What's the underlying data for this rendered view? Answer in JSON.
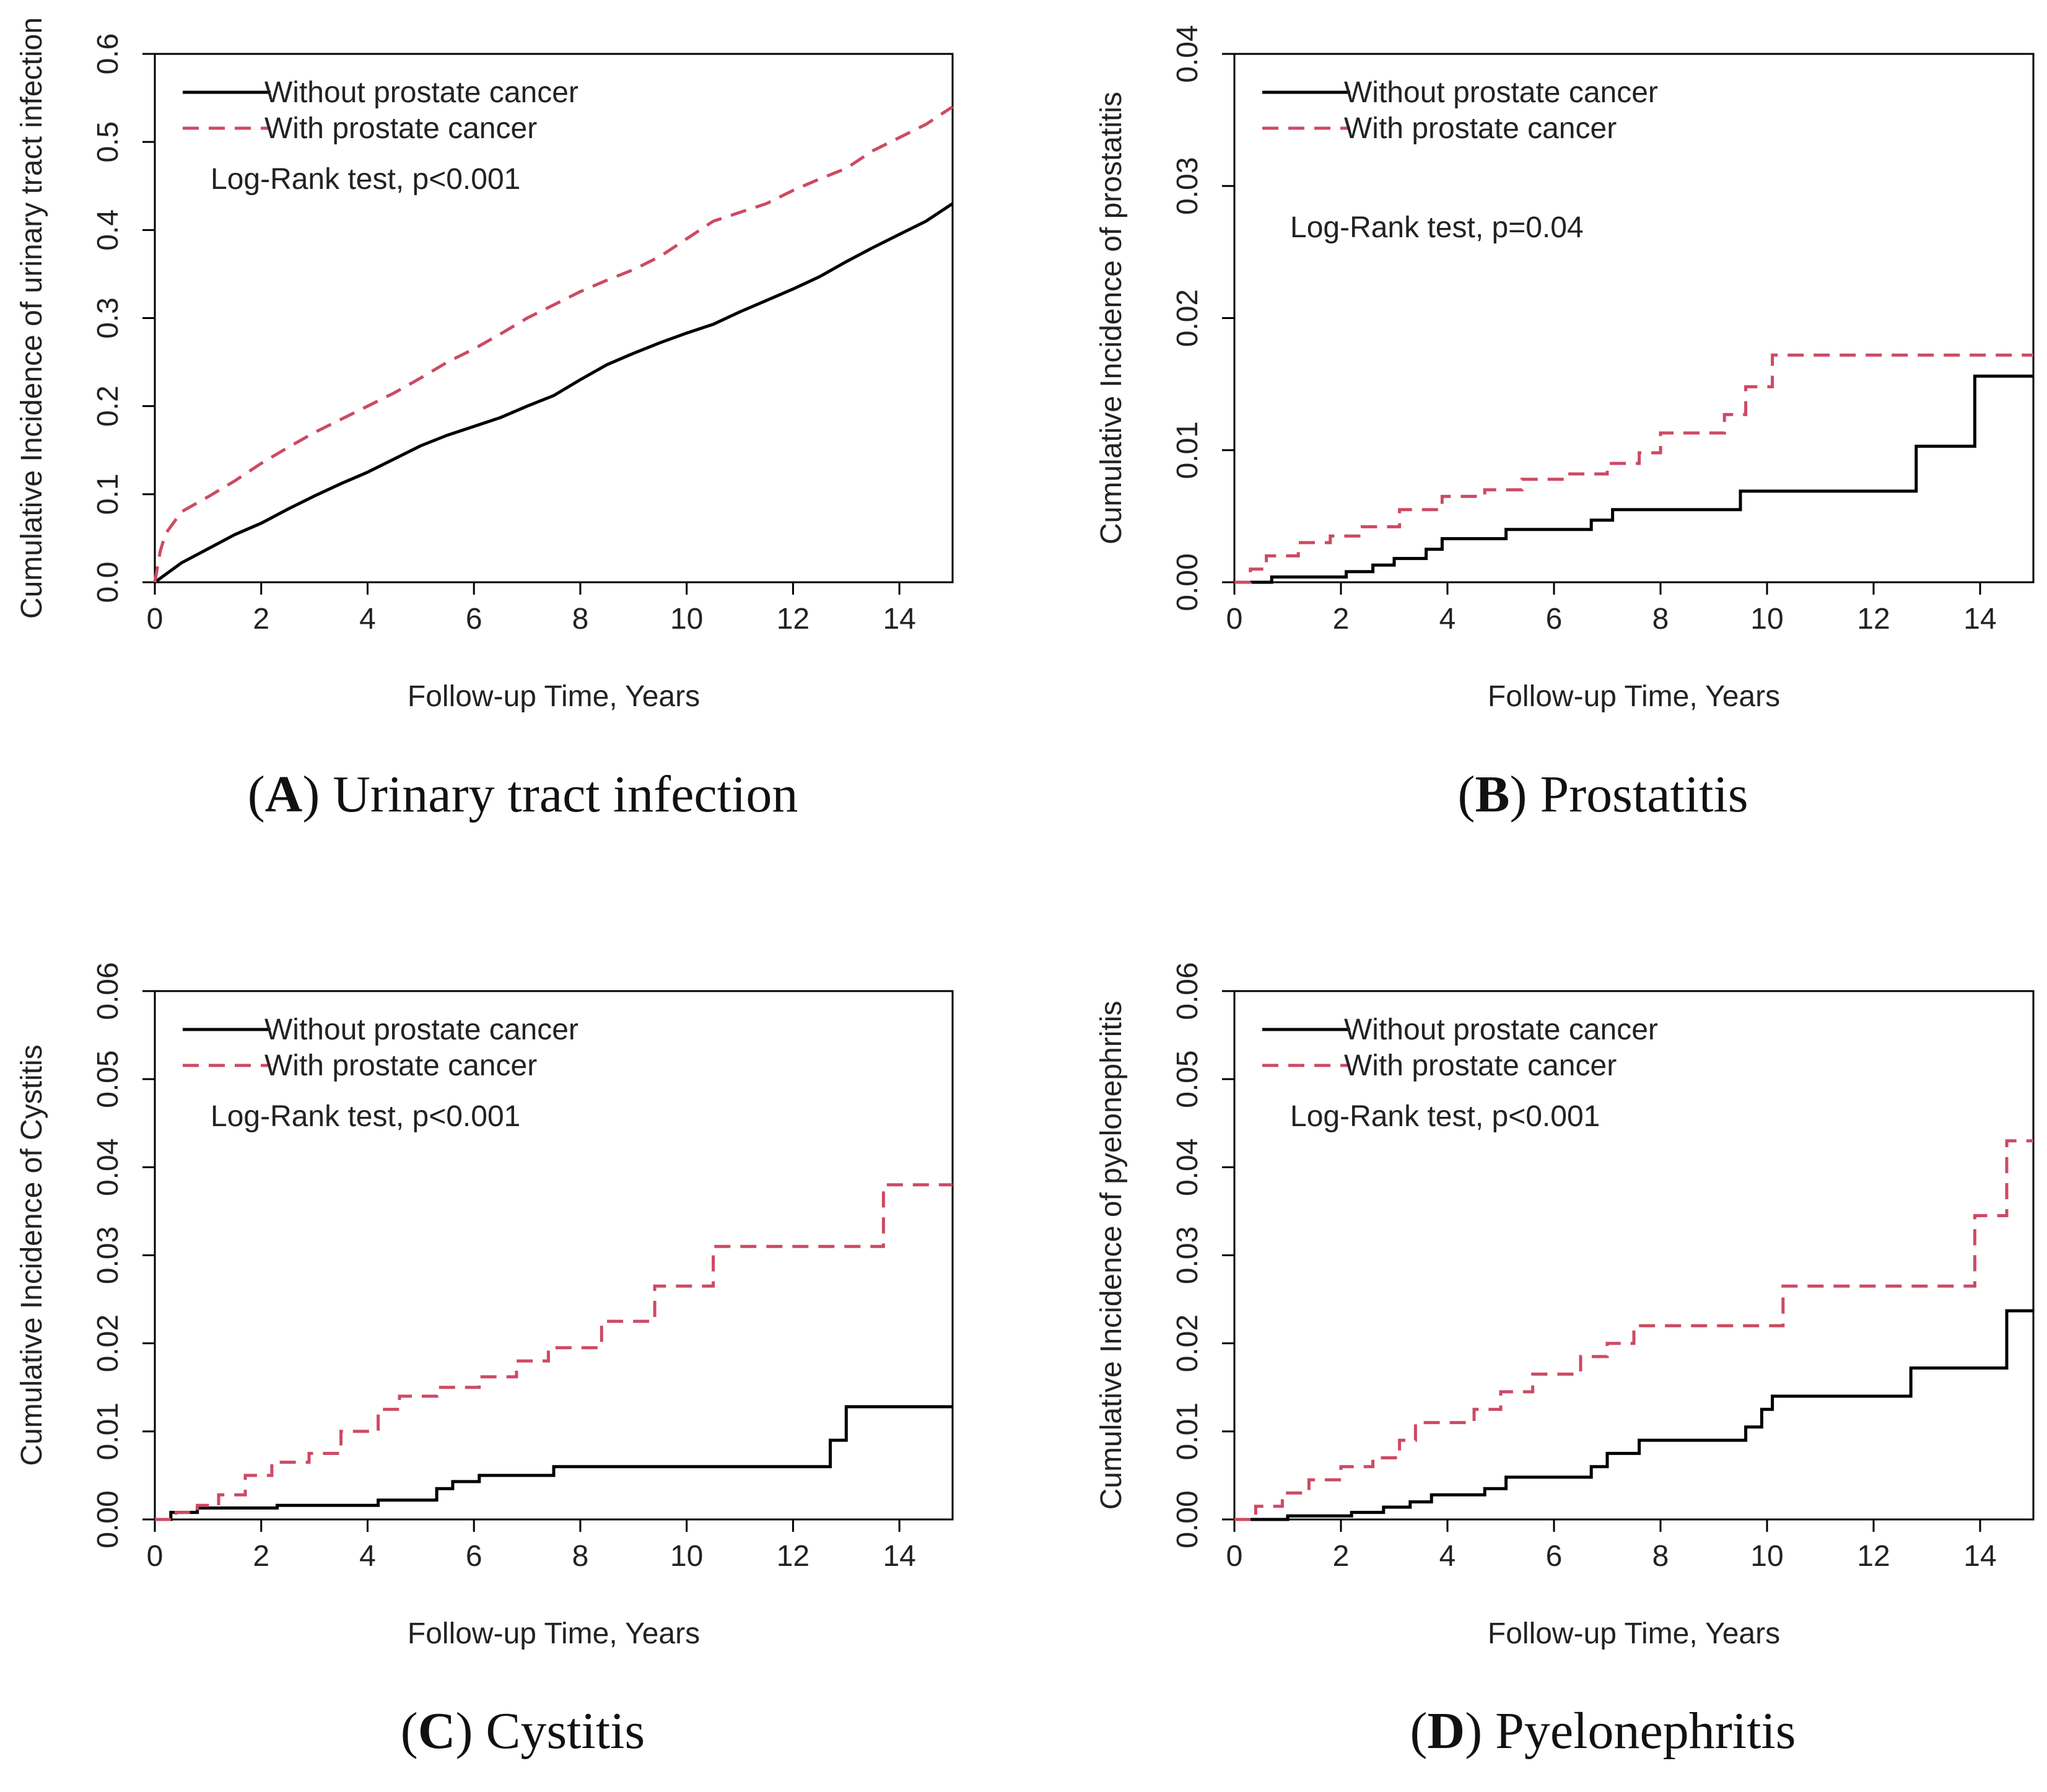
{
  "legend": {
    "without_label": "Without prostate cancer",
    "with_label": "With prostate cancer"
  },
  "colors": {
    "without": "#000000",
    "with": "#cd4a63"
  },
  "chart_data": [
    {
      "type": "line",
      "panel_letter": "A",
      "caption": "Urinary tract infection",
      "ylabel": "Cumulative Incidence of urinary tract infection",
      "xlabel": "Follow-up Time, Years",
      "annotation": "Log-Rank test, p<0.001",
      "xlim": [
        0,
        15
      ],
      "ylim": [
        0,
        0.6
      ],
      "xticks": [
        0,
        2,
        4,
        6,
        8,
        10,
        12,
        14
      ],
      "xtick_labels": [
        "0",
        "2",
        "4",
        "6",
        "8",
        "10",
        "12",
        "14"
      ],
      "yticks": [
        0,
        0.1,
        0.2,
        0.3,
        0.4,
        0.5,
        0.6
      ],
      "ytick_labels": [
        "0.0",
        "0.1",
        "0.2",
        "0.3",
        "0.4",
        "0.5",
        "0.6"
      ],
      "step": false,
      "series": [
        {
          "name": "Without prostate cancer",
          "x": [
            0,
            0.5,
            1,
            1.5,
            2,
            2.5,
            3,
            3.5,
            4,
            4.5,
            5,
            5.5,
            6,
            6.5,
            7,
            7.5,
            8,
            8.5,
            9,
            9.5,
            10,
            10.5,
            11,
            11.5,
            12,
            12.5,
            13,
            13.5,
            14,
            14.5,
            15
          ],
          "y": [
            0,
            0.022,
            0.038,
            0.054,
            0.067,
            0.083,
            0.098,
            0.112,
            0.125,
            0.14,
            0.155,
            0.167,
            0.177,
            0.187,
            0.2,
            0.212,
            0.23,
            0.247,
            0.26,
            0.272,
            0.283,
            0.293,
            0.307,
            0.32,
            0.333,
            0.347,
            0.364,
            0.38,
            0.395,
            0.41,
            0.43
          ]
        },
        {
          "name": "With prostate cancer",
          "x": [
            0,
            0.1,
            0.2,
            0.5,
            1,
            1.5,
            2,
            2.5,
            3,
            3.5,
            4,
            4.5,
            5,
            5.5,
            6,
            6.5,
            7,
            7.5,
            8,
            8.5,
            9,
            9.5,
            10,
            10.5,
            11,
            11.5,
            12,
            12.5,
            13,
            13.5,
            14,
            14.5,
            15
          ],
          "y": [
            0,
            0.035,
            0.055,
            0.08,
            0.097,
            0.115,
            0.135,
            0.153,
            0.17,
            0.185,
            0.2,
            0.215,
            0.232,
            0.25,
            0.265,
            0.282,
            0.3,
            0.315,
            0.33,
            0.343,
            0.355,
            0.37,
            0.39,
            0.41,
            0.42,
            0.43,
            0.445,
            0.458,
            0.47,
            0.49,
            0.505,
            0.52,
            0.54
          ]
        }
      ]
    },
    {
      "type": "line",
      "panel_letter": "B",
      "caption": "Prostatitis",
      "ylabel": "Cumulative Incidence of prostatitis",
      "xlabel": "Follow-up Time, Years",
      "annotation": "Log-Rank test, p=0.04",
      "xlim": [
        0,
        15
      ],
      "ylim": [
        0,
        0.04
      ],
      "xticks": [
        0,
        2,
        4,
        6,
        8,
        10,
        12,
        14
      ],
      "xtick_labels": [
        "0",
        "2",
        "4",
        "6",
        "8",
        "10",
        "12",
        "14"
      ],
      "yticks": [
        0,
        0.01,
        0.02,
        0.03,
        0.04
      ],
      "ytick_labels": [
        "0.00",
        "0.01",
        "0.02",
        "0.03",
        "0.04"
      ],
      "step": true,
      "series": [
        {
          "name": "Without prostate cancer",
          "x": [
            0,
            0.7,
            2.1,
            2.6,
            3.0,
            3.6,
            3.9,
            5.1,
            6.7,
            7.1,
            9.5,
            12.8,
            13.9,
            15
          ],
          "y": [
            0,
            0.0004,
            0.0008,
            0.0013,
            0.0018,
            0.0025,
            0.0033,
            0.004,
            0.0047,
            0.0055,
            0.0069,
            0.0103,
            0.0156,
            0.0156
          ]
        },
        {
          "name": "With prostate cancer",
          "x": [
            0,
            0.3,
            0.6,
            1.2,
            1.8,
            2.4,
            3.1,
            3.9,
            4.7,
            5.4,
            6.2,
            7.0,
            7.6,
            8.0,
            9.2,
            9.6,
            10.1,
            15
          ],
          "y": [
            0,
            0.001,
            0.002,
            0.003,
            0.0035,
            0.0042,
            0.0055,
            0.0065,
            0.007,
            0.0078,
            0.0082,
            0.009,
            0.0098,
            0.0113,
            0.0127,
            0.0148,
            0.0172,
            0.0172
          ]
        }
      ]
    },
    {
      "type": "line",
      "panel_letter": "C",
      "caption": "Cystitis",
      "ylabel": "Cumulative Incidence of Cystitis",
      "xlabel": "Follow-up Time, Years",
      "annotation": "Log-Rank test, p<0.001",
      "xlim": [
        0,
        15
      ],
      "ylim": [
        0,
        0.06
      ],
      "xticks": [
        0,
        2,
        4,
        6,
        8,
        10,
        12,
        14
      ],
      "xtick_labels": [
        "0",
        "2",
        "4",
        "6",
        "8",
        "10",
        "12",
        "14"
      ],
      "yticks": [
        0,
        0.01,
        0.02,
        0.03,
        0.04,
        0.05,
        0.06
      ],
      "ytick_labels": [
        "0.00",
        "0.01",
        "0.02",
        "0.03",
        "0.04",
        "0.05",
        "0.06"
      ],
      "step": true,
      "series": [
        {
          "name": "Without prostate cancer",
          "x": [
            0,
            0.3,
            0.8,
            2.3,
            4.2,
            5.3,
            5.6,
            6.1,
            7.5,
            12.7,
            13.0,
            15
          ],
          "y": [
            0,
            0.0008,
            0.0013,
            0.0016,
            0.0022,
            0.0035,
            0.0043,
            0.005,
            0.006,
            0.009,
            0.0128,
            0.0128
          ]
        },
        {
          "name": "With prostate cancer",
          "x": [
            0,
            0.4,
            0.8,
            1.2,
            1.7,
            2.2,
            2.9,
            3.5,
            4.2,
            4.6,
            5.3,
            6.1,
            6.8,
            7.4,
            8.4,
            9.4,
            10.5,
            13.7,
            15
          ],
          "y": [
            0,
            0.0008,
            0.0016,
            0.0028,
            0.005,
            0.0065,
            0.0075,
            0.01,
            0.0125,
            0.014,
            0.015,
            0.0162,
            0.018,
            0.0195,
            0.0225,
            0.0265,
            0.031,
            0.038,
            0.038
          ]
        }
      ]
    },
    {
      "type": "line",
      "panel_letter": "D",
      "caption": "Pyelonephritis",
      "ylabel": "Cumulative Incidence of pyelonephritis",
      "xlabel": "Follow-up Time, Years",
      "annotation": "Log-Rank test, p<0.001",
      "xlim": [
        0,
        15
      ],
      "ylim": [
        0,
        0.06
      ],
      "xticks": [
        0,
        2,
        4,
        6,
        8,
        10,
        12,
        14
      ],
      "xtick_labels": [
        "0",
        "2",
        "4",
        "6",
        "8",
        "10",
        "12",
        "14"
      ],
      "yticks": [
        0,
        0.01,
        0.02,
        0.03,
        0.04,
        0.05,
        0.06
      ],
      "ytick_labels": [
        "0.00",
        "0.01",
        "0.02",
        "0.03",
        "0.04",
        "0.05",
        "0.06"
      ],
      "step": true,
      "series": [
        {
          "name": "Without prostate cancer",
          "x": [
            0,
            1.0,
            2.2,
            2.8,
            3.3,
            3.7,
            4.7,
            5.1,
            6.7,
            7.0,
            7.6,
            9.6,
            9.9,
            10.1,
            12.7,
            14.5,
            15
          ],
          "y": [
            0,
            0.0004,
            0.0008,
            0.0014,
            0.002,
            0.0028,
            0.0035,
            0.0048,
            0.006,
            0.0075,
            0.009,
            0.0105,
            0.0125,
            0.014,
            0.0172,
            0.0237,
            0.0237
          ]
        },
        {
          "name": "With prostate cancer",
          "x": [
            0,
            0.4,
            0.9,
            1.4,
            2.0,
            2.6,
            3.1,
            3.4,
            4.5,
            5.0,
            5.6,
            6.5,
            7.0,
            7.5,
            10.3,
            13.9,
            14.5,
            15
          ],
          "y": [
            0,
            0.0015,
            0.003,
            0.0045,
            0.006,
            0.007,
            0.009,
            0.011,
            0.0125,
            0.0145,
            0.0165,
            0.0185,
            0.02,
            0.022,
            0.0265,
            0.0345,
            0.043,
            0.043
          ]
        }
      ]
    }
  ]
}
